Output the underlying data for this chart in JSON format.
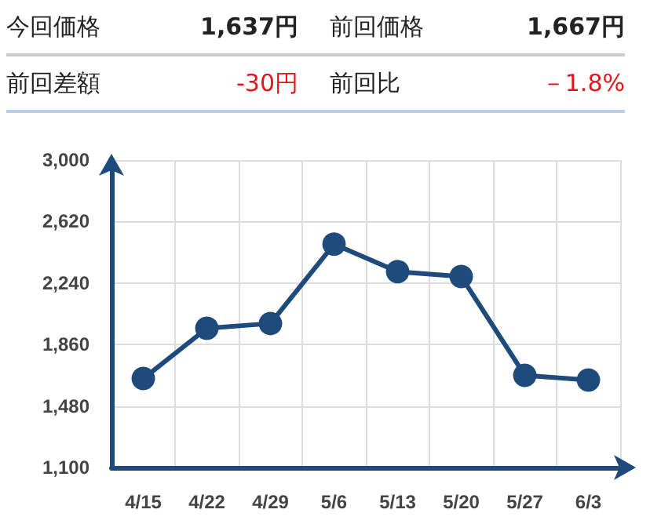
{
  "chart_data": {
    "type": "line",
    "annotations": [
      "今回価格",
      "1,637円",
      "前回価格",
      "1,667円",
      "前回差額",
      "-30円",
      "前回比",
      "－1.8%"
    ],
    "categories": [
      "4/15",
      "4/22",
      "4/29",
      "5/6",
      "5/13",
      "5/20",
      "5/27",
      "6/3"
    ],
    "series": [
      {
        "color": "#1f4a7c",
        "values": [
          1650,
          1960,
          1990,
          2480,
          2310,
          2280,
          1670,
          1640
        ]
      }
    ],
    "ylim": [
      1100,
      3000
    ],
    "yticks": [
      {
        "value": 1100,
        "label": "1,100"
      },
      {
        "value": 1480,
        "label": "1,480"
      },
      {
        "value": 1860,
        "label": "1,860"
      },
      {
        "value": 2240,
        "label": "2,240"
      },
      {
        "value": 2620,
        "label": "2,620"
      },
      {
        "value": 3000,
        "label": "3,000"
      }
    ],
    "grid": true,
    "marker": "circle",
    "line_style": "solid"
  }
}
